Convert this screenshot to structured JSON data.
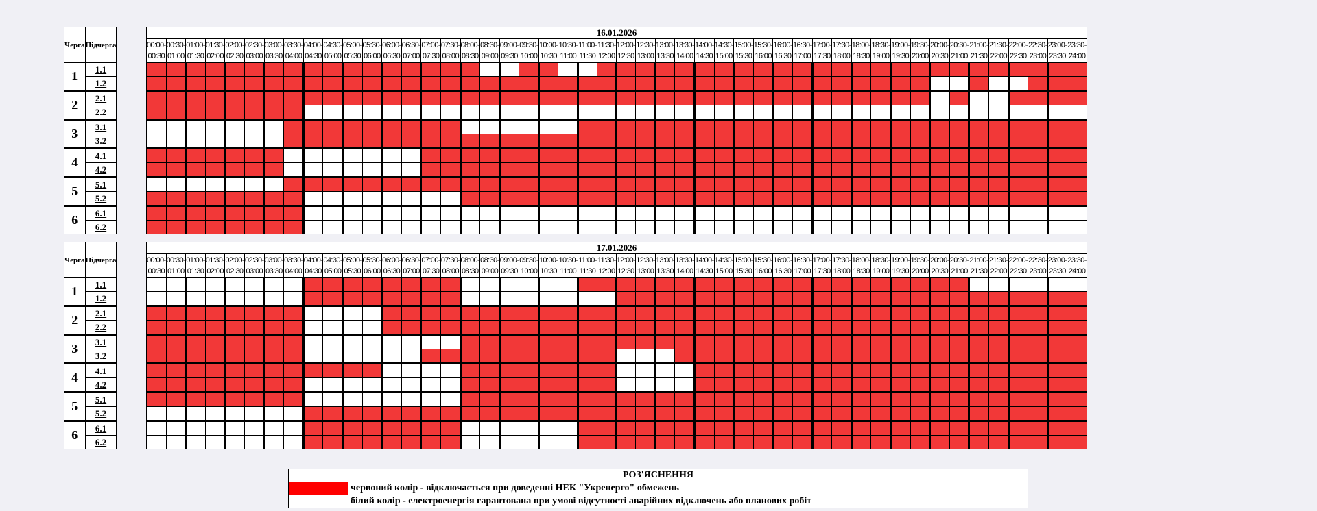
{
  "headers": {
    "queue": "Черга",
    "subqueue": "Підчерга"
  },
  "queues": [
    {
      "label": "1",
      "subs": [
        "1.1",
        "1.2"
      ]
    },
    {
      "label": "2",
      "subs": [
        "2.1",
        "2.2"
      ]
    },
    {
      "label": "3",
      "subs": [
        "3.1",
        "3.2"
      ]
    },
    {
      "label": "4",
      "subs": [
        "4.1",
        "4.2"
      ]
    },
    {
      "label": "5",
      "subs": [
        "5.1",
        "5.2"
      ]
    },
    {
      "label": "6",
      "subs": [
        "6.1",
        "6.2"
      ]
    }
  ],
  "time_slots": [
    [
      "00:00-",
      "00:30"
    ],
    [
      "00:30-",
      "01:00"
    ],
    [
      "01:00-",
      "01:30"
    ],
    [
      "01:30-",
      "02:00"
    ],
    [
      "02:00-",
      "02:30"
    ],
    [
      "02:30-",
      "03:00"
    ],
    [
      "03:00-",
      "03:30"
    ],
    [
      "03:30-",
      "04:00"
    ],
    [
      "04:00-",
      "04:30"
    ],
    [
      "04:30-",
      "05:00"
    ],
    [
      "05:00-",
      "05:30"
    ],
    [
      "05:30-",
      "06:00"
    ],
    [
      "06:00-",
      "06:30"
    ],
    [
      "06:30-",
      "07:00"
    ],
    [
      "07:00-",
      "07:30"
    ],
    [
      "07:30-",
      "08:00"
    ],
    [
      "08:00-",
      "08:30"
    ],
    [
      "08:30-",
      "09:00"
    ],
    [
      "09:00-",
      "09:30"
    ],
    [
      "09:30-",
      "10:00"
    ],
    [
      "10:00-",
      "10:30"
    ],
    [
      "10:30-",
      "11:00"
    ],
    [
      "11:00-",
      "11:30"
    ],
    [
      "11:30-",
      "12:00"
    ],
    [
      "12:00-",
      "12:30"
    ],
    [
      "12:30-",
      "13:00"
    ],
    [
      "13:00-",
      "13:30"
    ],
    [
      "13:30-",
      "14:00"
    ],
    [
      "14:00-",
      "14:30"
    ],
    [
      "14:30-",
      "15:00"
    ],
    [
      "15:00-",
      "15:30"
    ],
    [
      "15:30-",
      "16:00"
    ],
    [
      "16:00-",
      "16:30"
    ],
    [
      "16:30-",
      "17:00"
    ],
    [
      "17:00-",
      "17:30"
    ],
    [
      "17:30-",
      "18:00"
    ],
    [
      "18:00-",
      "18:30"
    ],
    [
      "18:30-",
      "19:00"
    ],
    [
      "19:00-",
      "19:30"
    ],
    [
      "19:30-",
      "20:00"
    ],
    [
      "20:00-",
      "20:30"
    ],
    [
      "20:30-",
      "21:00"
    ],
    [
      "21:00-",
      "21:30"
    ],
    [
      "21:30-",
      "22:00"
    ],
    [
      "22:00-",
      "22:30"
    ],
    [
      "22:30-",
      "23:00"
    ],
    [
      "23:00-",
      "23:30"
    ],
    [
      "23:30-",
      "24:00"
    ]
  ],
  "schedules": [
    {
      "date": "16.01.2026",
      "rows": [
        "111111111111111110011001111111111111111111111111",
        "111111111111111111111111111111111111111100100111",
        "111111111111111111111111111111111111111101001111",
        "111111110000000000000000000000000000000000000000",
        "000000011111111100000011111111111111111111111111",
        "000000011111111111111111111111111111111111111111",
        "111111100000001111111111111111111111111111111111",
        "111111100000001111111111111111111111111111111111",
        "000000011111111111111111111111111111111111111111",
        "111111110000000011111111111111111111111111111111",
        "111111110000000000000000000000000000000000000000",
        "111111110000000000000000000000000000000000000000"
      ]
    },
    {
      "date": "17.01.2026",
      "rows": [
        "000000001111111100000011111111111111111111000000",
        "000000001111111100000000111111111111111111111111",
        "111111110000111111111111111111111111111111111111",
        "111111110000111111111111111111111111111111111111",
        "111111110000000011111111111111111111111111111111",
        "111111110000001111111111000111111111111111111111",
        "111111111111000011111111000011111111111111111111",
        "111111110000000011111111000011111111111111111111",
        "111111110000000011111111111111111111111111111111",
        "000000001111111111111111111111111111111111111111",
        "000000001111111100000011111111111111111111111111",
        "000000001111111100000011111111111111111111111111"
      ]
    }
  ],
  "legend": {
    "title": "РОЗ'ЯСНЕННЯ",
    "items": [
      {
        "color": "#ff0000",
        "text": "червоний колір - відключається при доведенні НЕК \"Укренерго\" обмежень"
      },
      {
        "color": "#ffffff",
        "text": "білий колір - електроенергія гарантована при умові відсутності аварійних відключень або планових робіт"
      }
    ]
  },
  "colors": {
    "outage": "#f23838",
    "power": "#ffffff"
  }
}
